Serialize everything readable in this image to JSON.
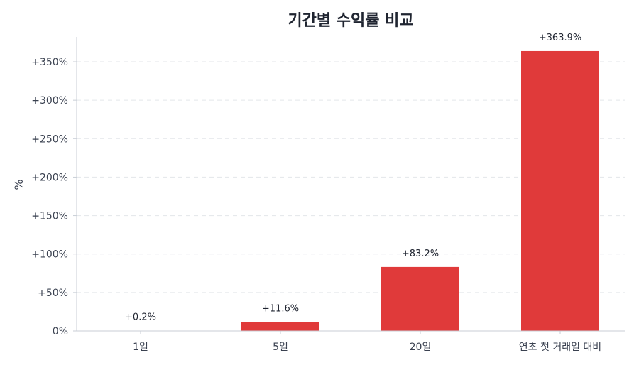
{
  "chart_data": {
    "type": "bar",
    "title": "기간별 수익률 비교",
    "ylabel": "%",
    "xlabel": "",
    "categories": [
      "1일",
      "5일",
      "20일",
      "연초 첫 거래일 대비"
    ],
    "values": [
      0.2,
      11.6,
      83.2,
      363.9
    ],
    "data_labels": [
      "+0.2%",
      "+11.6%",
      "+83.2%",
      "+363.9%"
    ],
    "ylim": [
      0,
      380
    ],
    "yticks": [
      0,
      50,
      100,
      150,
      200,
      250,
      300,
      350
    ],
    "ytick_labels": [
      "0%",
      "+50%",
      "+100%",
      "+150%",
      "+200%",
      "+250%",
      "+300%",
      "+350%"
    ],
    "bar_color": "#e03a3a",
    "grid": true
  }
}
